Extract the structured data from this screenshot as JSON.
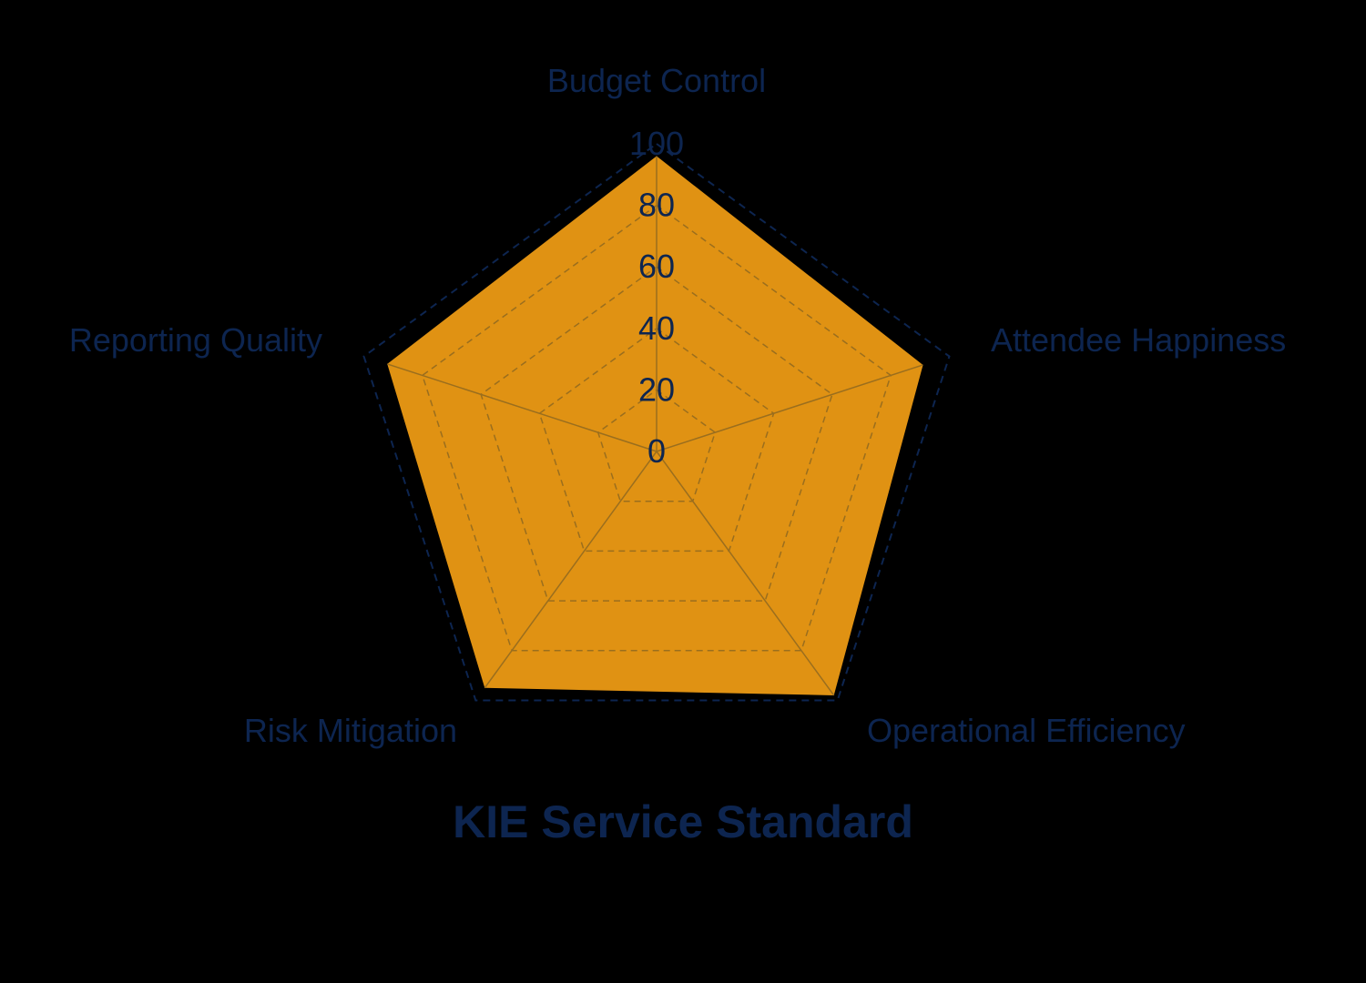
{
  "chart_data": {
    "type": "radar",
    "title": "KIE Service Standard",
    "categories": [
      "Budget Control",
      "Attendee Happiness",
      "Operational Efficiency",
      "Risk Mitigation",
      "Reporting Quality"
    ],
    "series": [
      {
        "name": "KIE Service Standard",
        "values": [
          96,
          91,
          98,
          95,
          92
        ],
        "color": "#e09213"
      }
    ],
    "radial_ticks": [
      "0",
      "20",
      "40",
      "60",
      "80",
      "100"
    ],
    "rlim": [
      0,
      100
    ],
    "grid": true,
    "legend": "none"
  },
  "colors": {
    "background": "#000000",
    "fill": "#e09213",
    "text": "#0d2550",
    "outer_grid": "#0d2550",
    "inner_grid": "#9a6e1e"
  }
}
